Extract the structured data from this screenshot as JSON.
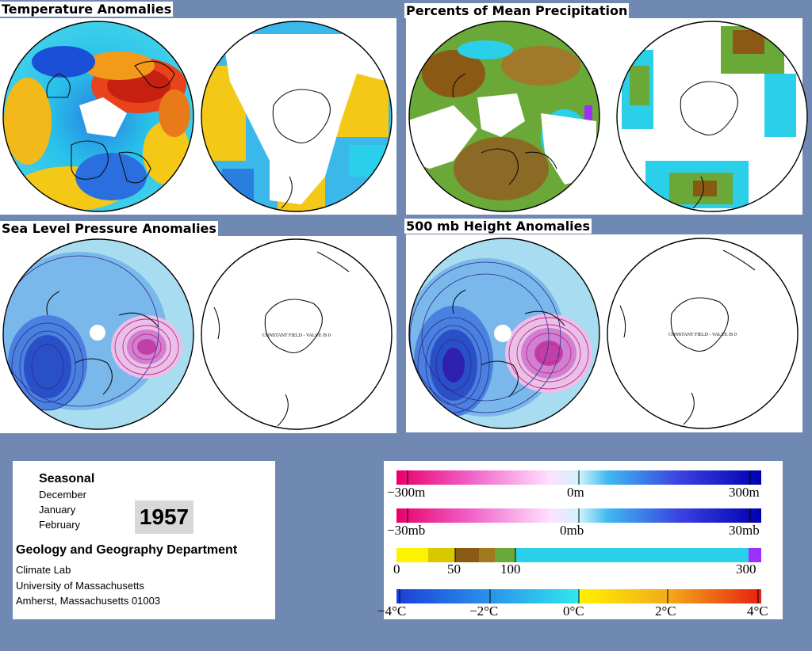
{
  "panels": {
    "temperature": {
      "title": "Temperature Anomalies"
    },
    "precipitation": {
      "title": "Percents of Mean Precipitation"
    },
    "sea_level_pressure": {
      "title": "Sea Level Pressure Anomalies",
      "constant_field_note": "CONSTANT FIELD - VALUE IS 0"
    },
    "height_500mb": {
      "title": "500 mb Height Anomalies",
      "constant_field_note": "CONSTANT FIELD - VALUE IS 0"
    }
  },
  "info": {
    "period_label": "Seasonal",
    "months": [
      "December",
      "January",
      "February"
    ],
    "year": "1957",
    "department": "Geology and Geography Department",
    "lab": "Climate Lab",
    "university": "University of Massachusetts",
    "address": "Amherst, Massachusetts 01003"
  },
  "legend": {
    "height_scale": {
      "labels": [
        "−300m",
        "0m",
        "300m"
      ]
    },
    "pressure_scale": {
      "labels": [
        "−30mb",
        "0mb",
        "30mb"
      ]
    },
    "precip_scale": {
      "labels": [
        "0",
        "50",
        "100",
        "300"
      ]
    },
    "temp_scale": {
      "labels": [
        "−4°C",
        "−2°C",
        "0°C",
        "2°C",
        "4°C"
      ]
    }
  },
  "colors": {
    "background": "#7089b3",
    "anomaly_cold": "#1a4fd8",
    "anomaly_cool": "#2ad0ea",
    "anomaly_warm": "#f3c817",
    "anomaly_hot": "#e8431a",
    "precip_dry": "#8a5a14",
    "precip_mid": "#6aa838",
    "contour_positive": "#cc2288",
    "contour_negative": "#2a2a8a"
  }
}
